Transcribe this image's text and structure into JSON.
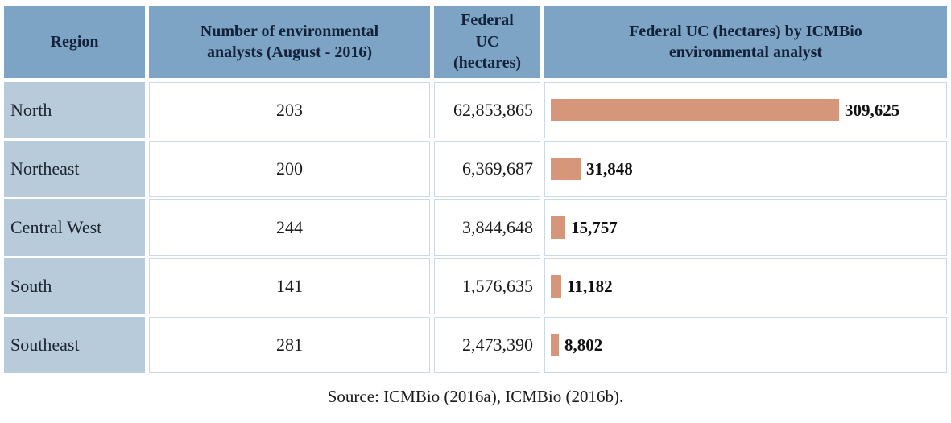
{
  "table": {
    "columns": [
      "Region",
      "Number of environmental\nanalysts (August - 2016)",
      "Federal\nUC\n(hectares)",
      "Federal UC (hectares) by ICMBio\nenvironmental analyst"
    ],
    "rows": [
      {
        "region": "North",
        "analysts": "203",
        "federal_uc": "62,853,865",
        "per_analyst_label": "309,625",
        "per_analyst_value": 309625
      },
      {
        "region": "Northeast",
        "analysts": "200",
        "federal_uc": "6,369,687",
        "per_analyst_label": "31,848",
        "per_analyst_value": 31848
      },
      {
        "region": "Central West",
        "analysts": "244",
        "federal_uc": "3,844,648",
        "per_analyst_label": "15,757",
        "per_analyst_value": 15757
      },
      {
        "region": "South",
        "analysts": "141",
        "federal_uc": "1,576,635",
        "per_analyst_label": "11,182",
        "per_analyst_value": 11182
      },
      {
        "region": "Southeast",
        "analysts": "281",
        "federal_uc": "2,473,390",
        "per_analyst_label": "8,802",
        "per_analyst_value": 8802
      }
    ]
  },
  "source": "Source: ICMBio (2016a), ICMBio (2016b).",
  "colors": {
    "header_bg": "#7DA4C4",
    "region_col_bg": "#B8CBDA",
    "bar_fill": "#D69679",
    "cell_border": "#CBD8E6",
    "header_text": "#14213a",
    "body_text": "#1b1b1b"
  },
  "chart_data": {
    "type": "table",
    "columns": [
      "Region",
      "Number of environmental analysts (August - 2016)",
      "Federal UC (hectares)",
      "Federal UC (hectares) by ICMBio environmental analyst"
    ],
    "rows": [
      [
        "North",
        203,
        62853865,
        309625
      ],
      [
        "Northeast",
        200,
        6369687,
        31848
      ],
      [
        "Central West",
        244,
        3844648,
        15757
      ],
      [
        "South",
        141,
        1576635,
        11182
      ],
      [
        "Southeast",
        281,
        2473390,
        8802
      ]
    ],
    "embedded_bar": {
      "type": "bar",
      "orientation": "horizontal",
      "title": "Federal UC (hectares) by ICMBio environmental analyst",
      "categories": [
        "North",
        "Northeast",
        "Central West",
        "South",
        "Southeast"
      ],
      "values": [
        309625,
        31848,
        15757,
        11182,
        8802
      ],
      "data_labels": [
        "309,625",
        "31,848",
        "15,757",
        "11,182",
        "8,802"
      ],
      "xlim": [
        0,
        425000
      ],
      "grid": false,
      "legend": false,
      "bar_color": "#D69679"
    },
    "source": "Source: ICMBio (2016a), ICMBio (2016b)."
  }
}
